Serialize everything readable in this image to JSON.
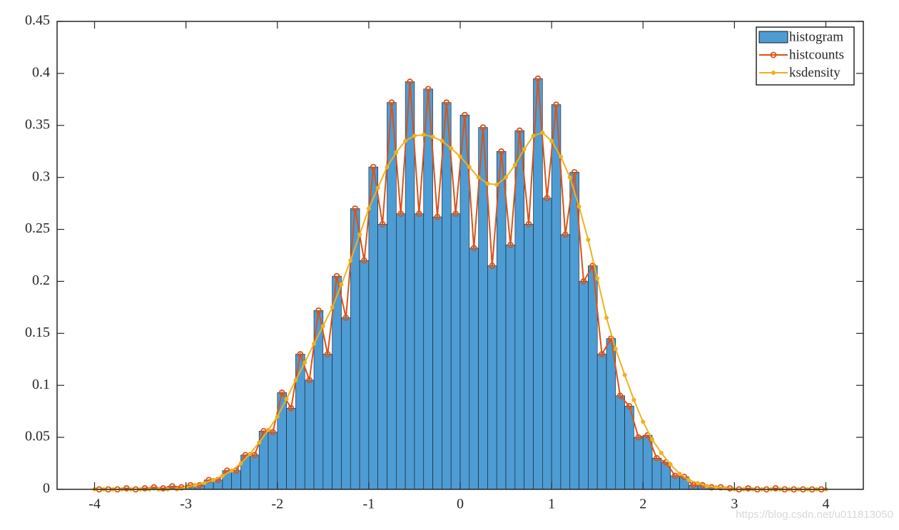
{
  "chart_data": {
    "type": "histogram",
    "bins": [
      -4,
      -3.9,
      -3.8,
      -3.7,
      -3.6,
      -3.5,
      -3.4,
      -3.3,
      -3.2,
      -3.1,
      -3,
      -2.9,
      -2.8,
      -2.7,
      -2.6,
      -2.5,
      -2.4,
      -2.3,
      -2.2,
      -2.1,
      -2,
      -1.9,
      -1.8,
      -1.7,
      -1.6,
      -1.5,
      -1.4,
      -1.3,
      -1.2,
      -1.1,
      -1,
      -0.9,
      -0.8,
      -0.7,
      -0.6,
      -0.5,
      -0.4,
      -0.3,
      -0.2,
      -0.1,
      0,
      0.1,
      0.2,
      0.3,
      0.4,
      0.5,
      0.6,
      0.7,
      0.8,
      0.9,
      1,
      1.1,
      1.2,
      1.3,
      1.4,
      1.5,
      1.6,
      1.7,
      1.8,
      1.9,
      2,
      2.1,
      2.2,
      2.3,
      2.4,
      2.5,
      2.6,
      2.7,
      2.8,
      2.9,
      3,
      3.1,
      3.2,
      3.3,
      3.4,
      3.5,
      3.6,
      3.7,
      3.8,
      3.9,
      4
    ],
    "series": [
      {
        "name": "histogram",
        "type": "histogram",
        "color": "#4d9cd4",
        "edgecolor": "#1a1a1a",
        "values": [
          0,
          0,
          0,
          0.001,
          0,
          0.001,
          0.002,
          0.001,
          0.003,
          0.002,
          0.004,
          0.004,
          0.009,
          0.009,
          0.018,
          0.018,
          0.033,
          0.033,
          0.056,
          0.055,
          0.093,
          0.078,
          0.13,
          0.105,
          0.172,
          0.13,
          0.205,
          0.165,
          0.27,
          0.22,
          0.31,
          0.255,
          0.372,
          0.265,
          0.392,
          0.265,
          0.385,
          0.262,
          0.372,
          0.265,
          0.36,
          0.232,
          0.348,
          0.215,
          0.325,
          0.235,
          0.345,
          0.255,
          0.395,
          0.28,
          0.37,
          0.245,
          0.305,
          0.2,
          0.215,
          0.13,
          0.145,
          0.09,
          0.08,
          0.05,
          0.052,
          0.03,
          0.026,
          0.013,
          0.012,
          0.004,
          0.004,
          0.002,
          0.002,
          0.001,
          0,
          0.001,
          0,
          0,
          0.001,
          0,
          0,
          0,
          0,
          0
        ]
      },
      {
        "name": "histcounts",
        "type": "line",
        "marker": "o",
        "color": "#d95319",
        "x": [
          -3.95,
          -3.85,
          -3.75,
          -3.65,
          -3.55,
          -3.45,
          -3.35,
          -3.25,
          -3.15,
          -3.05,
          -2.95,
          -2.85,
          -2.75,
          -2.65,
          -2.55,
          -2.45,
          -2.35,
          -2.25,
          -2.15,
          -2.05,
          -1.95,
          -1.85,
          -1.75,
          -1.65,
          -1.55,
          -1.45,
          -1.35,
          -1.25,
          -1.15,
          -1.05,
          -0.95,
          -0.85,
          -0.75,
          -0.65,
          -0.55,
          -0.45,
          -0.35,
          -0.25,
          -0.15,
          -0.05,
          0.05,
          0.15,
          0.25,
          0.35,
          0.45,
          0.55,
          0.65,
          0.75,
          0.85,
          0.95,
          1.05,
          1.15,
          1.25,
          1.35,
          1.45,
          1.55,
          1.65,
          1.75,
          1.85,
          1.95,
          2.05,
          2.15,
          2.25,
          2.35,
          2.45,
          2.55,
          2.65,
          2.75,
          2.85,
          2.95,
          3.05,
          3.15,
          3.25,
          3.35,
          3.45,
          3.55,
          3.65,
          3.75,
          3.85,
          3.95
        ],
        "values": [
          0,
          0,
          0,
          0.001,
          0,
          0.001,
          0.002,
          0.001,
          0.003,
          0.002,
          0.004,
          0.004,
          0.009,
          0.009,
          0.018,
          0.018,
          0.033,
          0.033,
          0.056,
          0.055,
          0.093,
          0.078,
          0.13,
          0.105,
          0.172,
          0.13,
          0.205,
          0.165,
          0.27,
          0.22,
          0.31,
          0.255,
          0.372,
          0.265,
          0.392,
          0.265,
          0.385,
          0.262,
          0.372,
          0.265,
          0.36,
          0.232,
          0.348,
          0.215,
          0.325,
          0.235,
          0.345,
          0.255,
          0.395,
          0.28,
          0.37,
          0.245,
          0.305,
          0.2,
          0.215,
          0.13,
          0.145,
          0.09,
          0.08,
          0.05,
          0.052,
          0.03,
          0.026,
          0.013,
          0.012,
          0.004,
          0.004,
          0.002,
          0.002,
          0.001,
          0,
          0.001,
          0,
          0,
          0.001,
          0,
          0,
          0,
          0,
          0
        ]
      },
      {
        "name": "ksdensity",
        "type": "line",
        "marker": ".",
        "color": "#edb120",
        "x": [
          -4,
          -3.9,
          -3.8,
          -3.7,
          -3.6,
          -3.5,
          -3.4,
          -3.3,
          -3.2,
          -3.1,
          -3,
          -2.9,
          -2.8,
          -2.7,
          -2.6,
          -2.5,
          -2.4,
          -2.3,
          -2.2,
          -2.1,
          -2,
          -1.9,
          -1.8,
          -1.7,
          -1.6,
          -1.5,
          -1.4,
          -1.3,
          -1.2,
          -1.1,
          -1,
          -0.9,
          -0.8,
          -0.7,
          -0.6,
          -0.5,
          -0.4,
          -0.3,
          -0.2,
          -0.1,
          0,
          0.1,
          0.2,
          0.3,
          0.4,
          0.5,
          0.6,
          0.7,
          0.8,
          0.9,
          1,
          1.1,
          1.2,
          1.3,
          1.4,
          1.5,
          1.6,
          1.7,
          1.8,
          1.9,
          2,
          2.1,
          2.2,
          2.3,
          2.4,
          2.5,
          2.6,
          2.7,
          2.8,
          2.9,
          3,
          3.1,
          3.2,
          3.3,
          3.4,
          3.5,
          3.6,
          3.7,
          3.8,
          3.9,
          4
        ],
        "values": [
          0,
          0,
          0,
          0,
          0,
          0,
          0,
          0,
          0,
          0,
          0.002,
          0.004,
          0.006,
          0.009,
          0.013,
          0.018,
          0.025,
          0.034,
          0.045,
          0.057,
          0.07,
          0.087,
          0.105,
          0.122,
          0.14,
          0.157,
          0.175,
          0.197,
          0.22,
          0.245,
          0.27,
          0.29,
          0.31,
          0.324,
          0.335,
          0.34,
          0.341,
          0.339,
          0.335,
          0.328,
          0.32,
          0.31,
          0.3,
          0.294,
          0.293,
          0.3,
          0.312,
          0.327,
          0.34,
          0.343,
          0.335,
          0.32,
          0.3,
          0.272,
          0.24,
          0.203,
          0.165,
          0.135,
          0.11,
          0.086,
          0.065,
          0.048,
          0.035,
          0.024,
          0.015,
          0.009,
          0.006,
          0.003,
          0.002,
          0.001,
          0,
          0,
          0,
          0,
          0,
          0,
          0,
          0,
          0,
          0,
          0
        ]
      }
    ],
    "xlim": [
      -4.41,
      4.41
    ],
    "ylim": [
      0,
      0.45
    ],
    "xticks": [
      -4,
      -3,
      -2,
      -1,
      0,
      1,
      2,
      3,
      4
    ],
    "yticks": [
      0,
      0.05,
      0.1,
      0.15,
      0.2,
      0.25,
      0.3,
      0.35,
      0.4,
      0.45
    ],
    "grid": false,
    "legend": "northeast",
    "watermark": "https://blog.csdn.net/u011813050"
  }
}
